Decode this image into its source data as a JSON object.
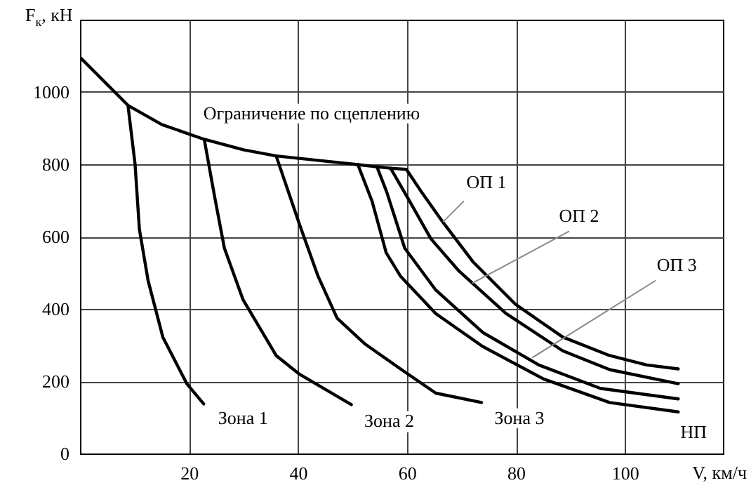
{
  "chart_data": {
    "type": "line",
    "xlabel": "V, км/ч",
    "ylabel": "F$_{к}$, кН",
    "xlim": [
      0,
      118
    ],
    "ylim": [
      0,
      1200
    ],
    "xticks": [
      20,
      40,
      60,
      80,
      100
    ],
    "yticks": [
      0,
      200,
      400,
      600,
      800,
      1000
    ],
    "grid": true,
    "series": [
      {
        "color": "#000000",
        "x": [
          0,
          8.8,
          15,
          22.8,
          30,
          36,
          43,
          51,
          54.5,
          57,
          59.9
        ],
        "values": [
          1096,
          963,
          910,
          869,
          840,
          823,
          812,
          799,
          793,
          789,
          786
        ]
      },
      {
        "color": "#000000",
        "x": [
          8.8,
          10.1,
          10.9,
          12.5,
          15.2,
          19.6,
          22.7
        ],
        "values": [
          963,
          801,
          620,
          478,
          322,
          193,
          137
        ]
      },
      {
        "color": "#000000",
        "x": [
          22.8,
          24.7,
          26.5,
          29.9,
          36,
          40.3,
          49.8
        ],
        "values": [
          869,
          711,
          568,
          426,
          271,
          219,
          135
        ]
      },
      {
        "color": "#000000",
        "x": [
          36,
          40.3,
          43.7,
          47.2,
          52.3,
          59,
          65.3,
          73.7
        ],
        "values": [
          823,
          633,
          490,
          374,
          303,
          232,
          167,
          141
        ]
      },
      {
        "color": "#000000",
        "x": [
          51,
          53.6,
          56.2,
          58.8,
          65.3,
          73.9,
          85.1,
          97.2,
          109.8
        ],
        "values": [
          799,
          698,
          555,
          491,
          387,
          296,
          206,
          141,
          115
        ]
      },
      {
        "color": "#000000",
        "x": [
          54.5,
          56.3,
          59.6,
          65.3,
          73.9,
          84.2,
          95.5,
          109.8
        ],
        "values": [
          793,
          723,
          568,
          452,
          335,
          245,
          180,
          151
        ]
      },
      {
        "color": "#000000",
        "x": [
          57,
          60.5,
          64.4,
          69.6,
          78.2,
          88.6,
          97.2,
          109.8
        ],
        "values": [
          789,
          698,
          594,
          504,
          387,
          284,
          232,
          193
        ]
      },
      {
        "color": "#000000",
        "x": [
          59.9,
          62.7,
          66.6,
          72.2,
          79.9,
          88.6,
          97.2,
          104,
          109.8
        ],
        "values": [
          786,
          723,
          640,
          529,
          413,
          322,
          271,
          245,
          234
        ]
      }
    ],
    "annotations": [
      {
        "text": "Ограничение по сцеплению",
        "x": 42,
        "y": 815
      },
      {
        "text": "ОП 1",
        "x": 66.6,
        "y": 640
      },
      {
        "text": "ОП 2",
        "x": 72,
        "y": 471
      },
      {
        "text": "ОП 3",
        "x": 83,
        "y": 265
      },
      {
        "text": "НП",
        "x": 109.8,
        "y": 115
      },
      {
        "text": "Зона 1",
        "x": 22.7,
        "y": 137
      },
      {
        "text": "Зона 2",
        "x": 49.8,
        "y": 135
      },
      {
        "text": "Зона 3",
        "x": 73.7,
        "y": 141
      }
    ]
  }
}
